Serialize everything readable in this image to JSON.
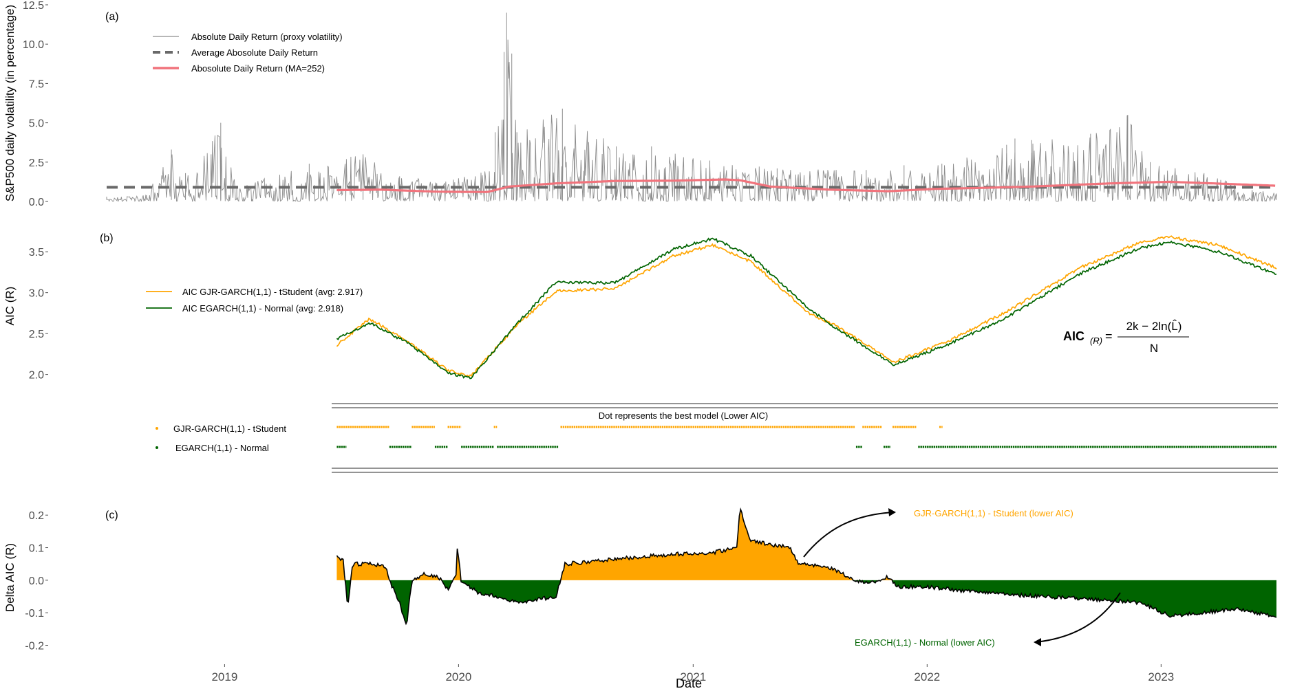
{
  "colors": {
    "abs_return": "#8c8c8c",
    "average": "#696969",
    "moving_avg": "#f1737c",
    "gjr": "#ffa500",
    "egarch": "#006400",
    "delta_line": "#000000"
  },
  "chart_data": [
    {
      "type": "line",
      "panel_label": "(a)",
      "ylabel": "S&P500 daily volatility (in percentage)",
      "ylim": [
        0,
        12.5
      ],
      "yticks": [
        "0.0",
        "2.5",
        "5.0",
        "7.5",
        "10.0",
        "12.5"
      ],
      "xlim": [
        "2018-07-01",
        "2023-06-30"
      ],
      "series": [
        {
          "name": "Absolute Daily Return (proxy volatility)",
          "points": [
            [
              "2018-07-01",
              0.3
            ],
            [
              "2018-09-01",
              0.4
            ],
            [
              "2018-10-10",
              3.3
            ],
            [
              "2018-11-01",
              1.8
            ],
            [
              "2018-12-26",
              5.0
            ],
            [
              "2019-01-20",
              0.9
            ],
            [
              "2019-05-13",
              2.4
            ],
            [
              "2019-08-05",
              3.0
            ],
            [
              "2019-10-01",
              1.6
            ],
            [
              "2020-01-27",
              1.6
            ],
            [
              "2020-02-27",
              4.4
            ],
            [
              "2020-03-12",
              9.5
            ],
            [
              "2020-03-16",
              12.0
            ],
            [
              "2020-03-24",
              9.4
            ],
            [
              "2020-04-01",
              4.4
            ],
            [
              "2020-06-11",
              5.9
            ],
            [
              "2020-09-03",
              3.5
            ],
            [
              "2020-10-28",
              3.5
            ],
            [
              "2021-01-27",
              2.6
            ],
            [
              "2021-05-12",
              2.1
            ],
            [
              "2021-09-28",
              2.0
            ],
            [
              "2021-11-26",
              2.3
            ],
            [
              "2022-01-24",
              2.4
            ],
            [
              "2022-05-05",
              3.6
            ],
            [
              "2022-05-18",
              4.0
            ],
            [
              "2022-06-13",
              3.9
            ],
            [
              "2022-09-13",
              4.3
            ],
            [
              "2022-11-10",
              5.5
            ],
            [
              "2022-12-15",
              2.5
            ],
            [
              "2023-03-09",
              1.8
            ],
            [
              "2023-06-30",
              0.5
            ]
          ]
        },
        {
          "name": "Average Abosolute Daily Return",
          "value": 0.9
        },
        {
          "name": "Abosolute Daily Return (MA=252)",
          "points": [
            [
              "2019-06-25",
              0.72
            ],
            [
              "2019-09-01",
              0.75
            ],
            [
              "2019-12-01",
              0.62
            ],
            [
              "2020-02-15",
              0.6
            ],
            [
              "2020-03-20",
              0.95
            ],
            [
              "2020-06-01",
              1.15
            ],
            [
              "2020-09-01",
              1.3
            ],
            [
              "2020-12-01",
              1.32
            ],
            [
              "2021-02-20",
              1.4
            ],
            [
              "2021-03-15",
              1.35
            ],
            [
              "2021-05-01",
              0.95
            ],
            [
              "2021-08-01",
              0.75
            ],
            [
              "2021-11-01",
              0.65
            ],
            [
              "2022-01-15",
              0.8
            ],
            [
              "2022-03-15",
              0.85
            ],
            [
              "2022-06-15",
              0.95
            ],
            [
              "2022-10-15",
              1.15
            ],
            [
              "2023-01-15",
              1.25
            ],
            [
              "2023-06-30",
              1.0
            ]
          ]
        }
      ]
    },
    {
      "type": "line",
      "panel_label": "(b)",
      "ylabel": "AIC (R)",
      "ylim": [
        1.82,
        3.72
      ],
      "yticks": [
        "2.0",
        "2.5",
        "3.0",
        "3.5"
      ],
      "series": [
        {
          "name": "AIC GJR-GARCH(1,1) - tStudent (avg: 2.917)",
          "points": [
            [
              "2019-06-25",
              2.36
            ],
            [
              "2019-08-15",
              2.68
            ],
            [
              "2019-10-15",
              2.4
            ],
            [
              "2019-12-15",
              2.05
            ],
            [
              "2020-01-20",
              1.98
            ],
            [
              "2020-04-01",
              2.6
            ],
            [
              "2020-06-01",
              3.02
            ],
            [
              "2020-09-01",
              3.05
            ],
            [
              "2020-12-01",
              3.45
            ],
            [
              "2021-02-01",
              3.58
            ],
            [
              "2021-04-01",
              3.38
            ],
            [
              "2021-07-01",
              2.75
            ],
            [
              "2021-08-15",
              2.58
            ],
            [
              "2021-11-10",
              2.15
            ],
            [
              "2022-02-01",
              2.4
            ],
            [
              "2022-05-01",
              2.75
            ],
            [
              "2022-09-01",
              3.32
            ],
            [
              "2022-12-01",
              3.62
            ],
            [
              "2023-01-15",
              3.68
            ],
            [
              "2023-04-01",
              3.58
            ],
            [
              "2023-06-30",
              3.3
            ]
          ]
        },
        {
          "name": "AIC EGARCH(1,1) - Normal (avg: 2.918)",
          "points": [
            [
              "2019-06-25",
              2.43
            ],
            [
              "2019-08-15",
              2.63
            ],
            [
              "2019-10-15",
              2.38
            ],
            [
              "2019-12-15",
              2.02
            ],
            [
              "2020-01-20",
              1.95
            ],
            [
              "2020-04-01",
              2.62
            ],
            [
              "2020-06-01",
              3.13
            ],
            [
              "2020-09-01",
              3.12
            ],
            [
              "2020-12-01",
              3.53
            ],
            [
              "2021-02-01",
              3.66
            ],
            [
              "2021-04-01",
              3.45
            ],
            [
              "2021-07-01",
              2.8
            ],
            [
              "2021-08-15",
              2.55
            ],
            [
              "2021-11-10",
              2.12
            ],
            [
              "2022-02-01",
              2.36
            ],
            [
              "2022-05-01",
              2.68
            ],
            [
              "2022-09-01",
              3.25
            ],
            [
              "2022-12-01",
              3.55
            ],
            [
              "2023-01-15",
              3.62
            ],
            [
              "2023-04-01",
              3.5
            ],
            [
              "2023-06-30",
              3.22
            ]
          ]
        }
      ],
      "formula": {
        "lhs": "AIC",
        "subscript": "(R)",
        "equals": "=",
        "numerator": "2k − 2ln(L̂)",
        "denominator": "N"
      }
    },
    {
      "type": "scatter",
      "caption": "Dot represents the best model (Lower AIC)",
      "series": [
        {
          "name": "GJR-GARCH(1,1) - tStudent",
          "segments": [
            [
              "2019-06-25",
              "2019-09-15"
            ],
            [
              "2019-10-20",
              "2019-11-25"
            ],
            [
              "2019-12-15",
              "2020-01-05"
            ],
            [
              "2020-02-25",
              "2020-03-01"
            ],
            [
              "2020-06-08",
              "2021-09-10"
            ],
            [
              "2021-09-22",
              "2021-10-22"
            ],
            [
              "2021-11-08",
              "2021-12-15"
            ],
            [
              "2022-01-20",
              "2022-01-25"
            ]
          ]
        },
        {
          "name": "EGARCH(1,1) - Normal",
          "segments": [
            [
              "2019-06-25",
              "2019-07-10"
            ],
            [
              "2019-09-15",
              "2019-10-20"
            ],
            [
              "2019-11-25",
              "2019-12-15"
            ],
            [
              "2020-01-05",
              "2020-02-25"
            ],
            [
              "2020-03-01",
              "2020-06-05"
            ],
            [
              "2021-09-12",
              "2021-09-22"
            ],
            [
              "2021-10-25",
              "2021-11-05"
            ],
            [
              "2021-12-18",
              "2023-06-30"
            ]
          ]
        }
      ]
    },
    {
      "type": "area",
      "panel_label": "(c)",
      "ylabel": "Delta AIC (R)",
      "ylim": [
        -0.22,
        0.23
      ],
      "yticks": [
        "-0.2",
        "-0.1",
        "0.0",
        "0.1",
        "0.2"
      ],
      "xticks": [
        "2019",
        "2020",
        "2021",
        "2022",
        "2023"
      ],
      "xlabel": "Date",
      "annotations": [
        "GJR-GARCH(1,1) - tStudent (lower AIC)",
        "EGARCH(1,1) - Normal (lower AIC)"
      ],
      "points": [
        [
          "2019-06-25",
          0.07
        ],
        [
          "2019-07-05",
          0.06
        ],
        [
          "2019-07-12",
          -0.08
        ],
        [
          "2019-07-20",
          0.05
        ],
        [
          "2019-08-20",
          0.05
        ],
        [
          "2019-09-10",
          0.04
        ],
        [
          "2019-09-15",
          0.0
        ],
        [
          "2019-10-01",
          -0.07
        ],
        [
          "2019-10-12",
          -0.14
        ],
        [
          "2019-10-20",
          0.0
        ],
        [
          "2019-11-10",
          0.02
        ],
        [
          "2019-11-28",
          0.01
        ],
        [
          "2019-12-05",
          0.0
        ],
        [
          "2019-12-15",
          -0.03
        ],
        [
          "2019-12-28",
          0.02
        ],
        [
          "2019-12-30",
          0.1
        ],
        [
          "2020-01-05",
          0.0
        ],
        [
          "2020-02-01",
          -0.04
        ],
        [
          "2020-03-01",
          -0.05
        ],
        [
          "2020-04-01",
          -0.07
        ],
        [
          "2020-06-01",
          -0.05
        ],
        [
          "2020-06-08",
          0.0
        ],
        [
          "2020-06-15",
          0.05
        ],
        [
          "2020-09-01",
          0.065
        ],
        [
          "2020-12-01",
          0.08
        ],
        [
          "2021-02-01",
          0.085
        ],
        [
          "2021-03-10",
          0.1
        ],
        [
          "2021-03-15",
          0.22
        ],
        [
          "2021-04-01",
          0.12
        ],
        [
          "2021-06-01",
          0.1
        ],
        [
          "2021-06-15",
          0.05
        ],
        [
          "2021-08-01",
          0.04
        ],
        [
          "2021-09-10",
          0.0
        ],
        [
          "2021-10-01",
          -0.01
        ],
        [
          "2021-11-01",
          0.01
        ],
        [
          "2021-11-15",
          -0.02
        ],
        [
          "2022-01-01",
          -0.02
        ],
        [
          "2022-04-01",
          -0.04
        ],
        [
          "2022-07-01",
          -0.05
        ],
        [
          "2022-10-01",
          -0.06
        ],
        [
          "2022-12-01",
          -0.07
        ],
        [
          "2023-01-15",
          -0.11
        ],
        [
          "2023-03-01",
          -0.1
        ],
        [
          "2023-05-01",
          -0.09
        ],
        [
          "2023-06-30",
          -0.11
        ]
      ]
    }
  ]
}
